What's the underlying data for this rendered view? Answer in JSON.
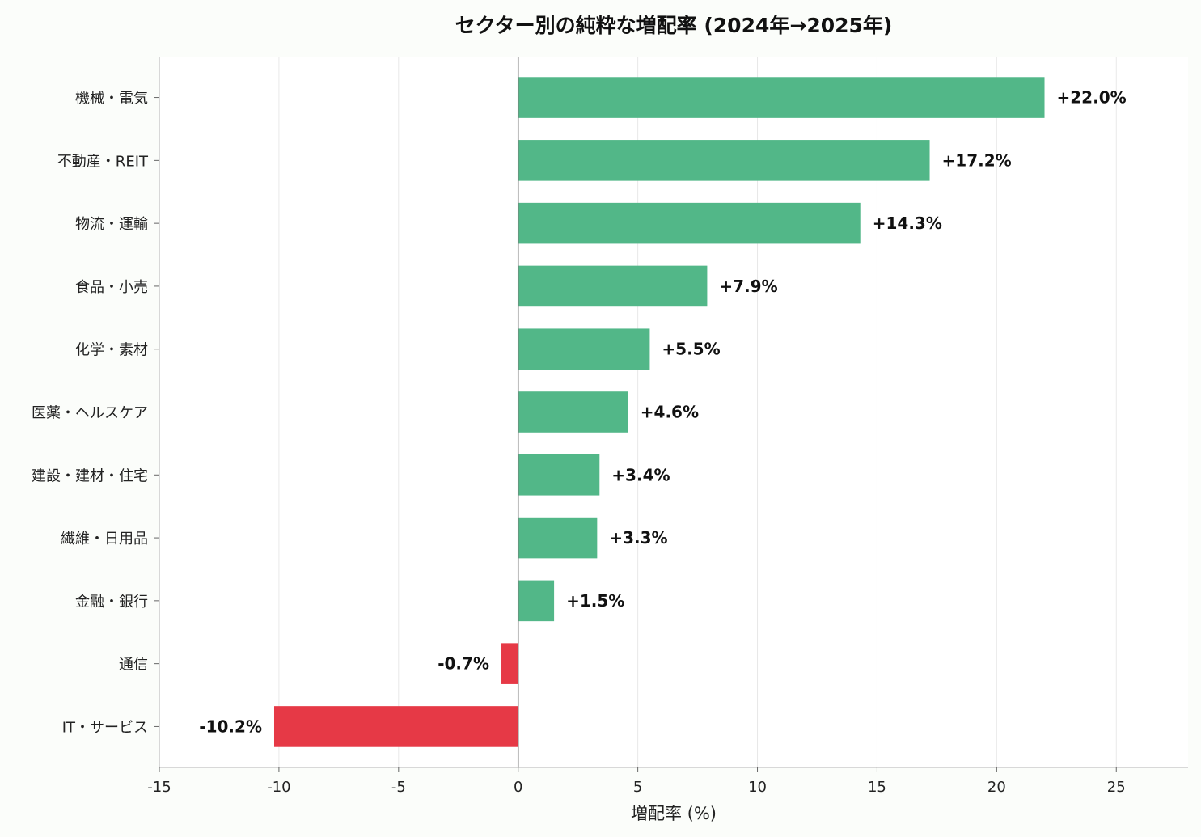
{
  "chart_data": {
    "type": "bar",
    "orientation": "horizontal",
    "title": "セクター別の純粋な増配率 (2024年→2025年)",
    "xlabel": "増配率 (%)",
    "ylabel": "",
    "xlim": [
      -15,
      28
    ],
    "xticks": [
      -15,
      -10,
      -5,
      0,
      5,
      10,
      15,
      20,
      25
    ],
    "grid": "vertical",
    "categories": [
      "機械・電気",
      "不動産・REIT",
      "物流・運輸",
      "食品・小売",
      "化学・素材",
      "医薬・ヘルスケア",
      "建設・建材・住宅",
      "繊維・日用品",
      "金融・銀行",
      "通信",
      "IT・サービス"
    ],
    "values": [
      22.0,
      17.2,
      14.3,
      7.9,
      5.5,
      4.6,
      3.4,
      3.3,
      1.5,
      -0.7,
      -10.2
    ],
    "data_labels": [
      "+22.0%",
      "+17.2%",
      "+14.3%",
      "+7.9%",
      "+5.5%",
      "+4.6%",
      "+3.4%",
      "+3.3%",
      "+1.5%",
      "-0.7%",
      "-10.2%"
    ],
    "colors": {
      "positive": "#52b788",
      "negative": "#e63946"
    }
  }
}
